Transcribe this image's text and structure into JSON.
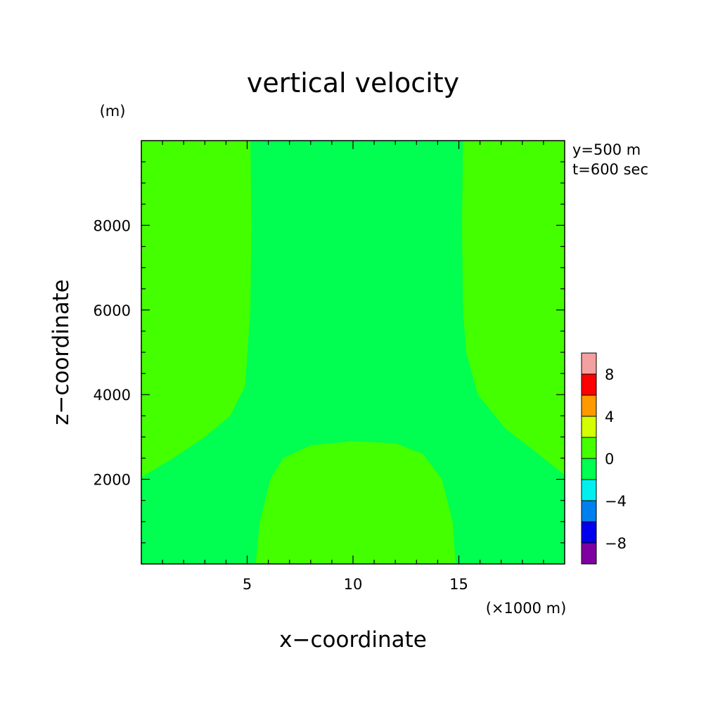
{
  "chart_data": {
    "type": "heatmap",
    "title": "vertical velocity",
    "xlabel": "x−coordinate",
    "ylabel": "z−coordinate",
    "x_unit": "(×1000 m)",
    "y_unit": "(m)",
    "annotations": [
      "y=500 m",
      "t=600 sec"
    ],
    "xlim": [
      0,
      20
    ],
    "ylim": [
      0,
      10000
    ],
    "x_ticks": [
      5,
      10,
      15
    ],
    "y_ticks": [
      2000,
      4000,
      6000,
      8000
    ],
    "colorbar": {
      "levels": [
        -10,
        -8,
        -6,
        -4,
        -2,
        0,
        2,
        4,
        6,
        8,
        10
      ],
      "tick_labels": [
        "8",
        "4",
        "0",
        "−4",
        "−8"
      ],
      "tick_values": [
        8,
        4,
        0,
        -4,
        -8
      ],
      "colors": [
        "#7f00a0",
        "#0000ee",
        "#0080f0",
        "#00f0f0",
        "#00ff50",
        "#44ff00",
        "#d4ff00",
        "#ff9900",
        "#ff0000",
        "#f4a0a0"
      ]
    },
    "background_level_color": "#00ff50",
    "regions": [
      {
        "level": "0 to 2",
        "color": "#44ff00",
        "points": [
          [
            0,
            2050
          ],
          [
            1.5,
            2500
          ],
          [
            3,
            3000
          ],
          [
            4.2,
            3500
          ],
          [
            4.9,
            4200
          ],
          [
            5.15,
            6000
          ],
          [
            5.2,
            8000
          ],
          [
            5.15,
            10000
          ],
          [
            0,
            10000
          ]
        ]
      },
      {
        "level": "0 to 2",
        "color": "#44ff00",
        "points": [
          [
            20,
            2100
          ],
          [
            18.5,
            2700
          ],
          [
            17.2,
            3200
          ],
          [
            15.9,
            4000
          ],
          [
            15.35,
            5000
          ],
          [
            15.2,
            6000
          ],
          [
            15.15,
            8000
          ],
          [
            15.2,
            10000
          ],
          [
            20,
            10000
          ]
        ]
      },
      {
        "level": "0 to 2",
        "color": "#44ff00",
        "points": [
          [
            5.4,
            0
          ],
          [
            5.6,
            1000
          ],
          [
            6.1,
            2000
          ],
          [
            6.7,
            2500
          ],
          [
            8,
            2800
          ],
          [
            10,
            2900
          ],
          [
            12,
            2850
          ],
          [
            13.3,
            2600
          ],
          [
            14.2,
            2000
          ],
          [
            14.7,
            1000
          ],
          [
            14.85,
            0
          ]
        ]
      }
    ]
  }
}
